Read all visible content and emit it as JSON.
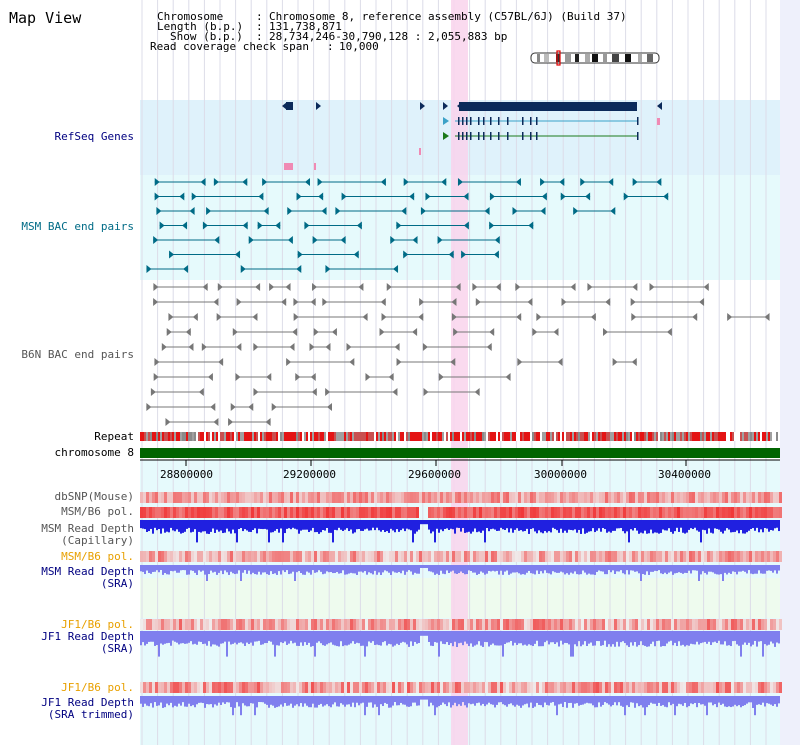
{
  "title": "Map View",
  "info": {
    "chromosome_key": "Chromosome",
    "chromosome_value": "Chromosome 8, reference assembly (C57BL/6J) (Build 37)",
    "length_key": "Length (b.p.)",
    "length_value": "131,738,871",
    "show_key": "Show (b.p.)",
    "show_value": "28,734,246-30,790,128 : 2,055,883 bp",
    "coverage_key": "Read coverage check span",
    "coverage_value": "10,000"
  },
  "tracks": {
    "refseq": "RefSeq Genes",
    "msm_bac": "MSM BAC end pairs",
    "b6n_bac": "B6N BAC end pairs",
    "repeat": "Repeat",
    "chromosome": "chromosome 8",
    "dbsnp": "dbSNP(Mouse)",
    "msm_b6_pol_1": "MSM/B6 pol.",
    "msm_depth_cap_1": "MSM Read Depth",
    "msm_depth_cap_2": "(Capillary)",
    "msm_b6_pol_2": "MSM/B6 pol.",
    "msm_depth_sra_1": "MSM Read Depth",
    "msm_depth_sra_2": "(SRA)",
    "jf1_b6_pol_1": "JF1/B6 pol.",
    "jf1_depth_sra_1": "JF1 Read Depth",
    "jf1_depth_sra_2": "(SRA)",
    "jf1_b6_pol_2": "JF1/B6 pol.",
    "jf1_depth_trim_1": "JF1 Read Depth",
    "jf1_depth_trim_2": "(SRA trimmed)"
  },
  "axis": {
    "ticks": [
      "28800000",
      "29200000",
      "29600000",
      "30000000",
      "30400000"
    ]
  },
  "colors": {
    "navy": "#000080",
    "teal": "#006b86",
    "highlight": "#ffd6f0",
    "chromosome_bar": "#006400",
    "depth_blue": "#2020e0",
    "depth_light": "#7f7fee",
    "pol_red": "#f03030"
  }
}
